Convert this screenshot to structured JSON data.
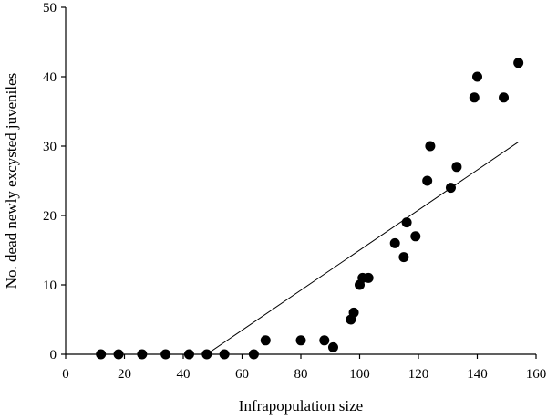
{
  "chart_data": {
    "type": "scatter",
    "title": "",
    "xlabel": "Infrapopulation size",
    "ylabel": "No. dead newly excysted juveniles",
    "xlim": [
      0,
      160
    ],
    "ylim": [
      0,
      50
    ],
    "xticks": [
      "0",
      "20",
      "40",
      "60",
      "80",
      "100",
      "120",
      "140",
      "160"
    ],
    "yticks": [
      "0",
      "10",
      "20",
      "30",
      "40",
      "50"
    ],
    "grid": false,
    "legend": "none",
    "points": [
      {
        "x": 12,
        "y": 0
      },
      {
        "x": 18,
        "y": 0
      },
      {
        "x": 26,
        "y": 0
      },
      {
        "x": 34,
        "y": 0
      },
      {
        "x": 42,
        "y": 0
      },
      {
        "x": 48,
        "y": 0
      },
      {
        "x": 54,
        "y": 0
      },
      {
        "x": 64,
        "y": 0
      },
      {
        "x": 68,
        "y": 2
      },
      {
        "x": 80,
        "y": 2
      },
      {
        "x": 88,
        "y": 2
      },
      {
        "x": 91,
        "y": 1
      },
      {
        "x": 97,
        "y": 5
      },
      {
        "x": 98,
        "y": 6
      },
      {
        "x": 100,
        "y": 10
      },
      {
        "x": 101,
        "y": 11
      },
      {
        "x": 103,
        "y": 11
      },
      {
        "x": 112,
        "y": 16
      },
      {
        "x": 115,
        "y": 14
      },
      {
        "x": 116,
        "y": 19
      },
      {
        "x": 119,
        "y": 17
      },
      {
        "x": 123,
        "y": 25
      },
      {
        "x": 124,
        "y": 30
      },
      {
        "x": 131,
        "y": 24
      },
      {
        "x": 133,
        "y": 27
      },
      {
        "x": 139,
        "y": 37
      },
      {
        "x": 140,
        "y": 40
      },
      {
        "x": 149,
        "y": 37
      },
      {
        "x": 154,
        "y": 42
      }
    ],
    "trendline": {
      "x": [
        48,
        154
      ],
      "y": [
        0,
        30.6
      ]
    }
  }
}
